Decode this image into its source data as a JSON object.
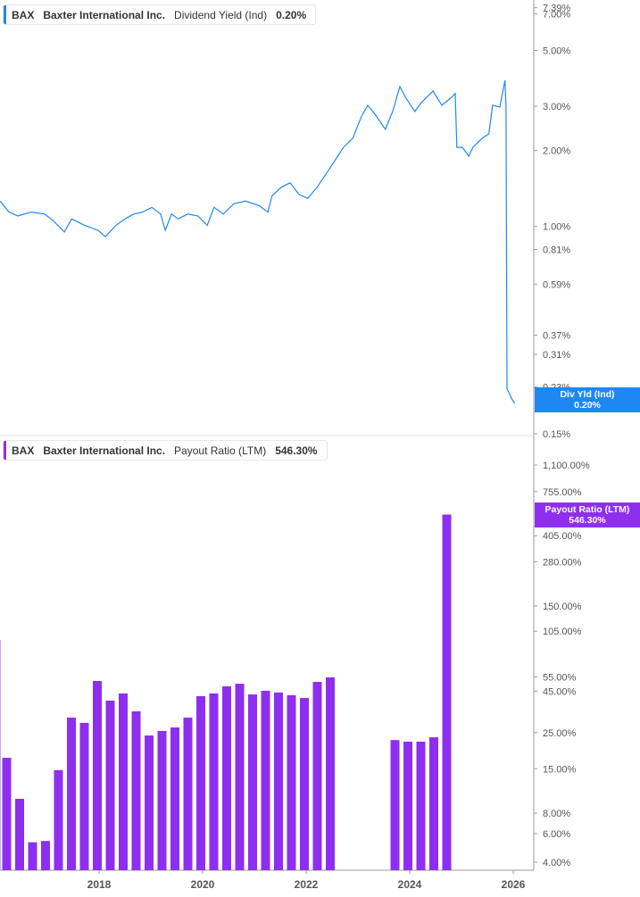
{
  "colors": {
    "yield": "#1f87f2",
    "payout": "#8e2ff0",
    "axis": "#999999"
  },
  "legend_top": {
    "ticker": "BAX",
    "company": "Baxter International Inc.",
    "metric": "Dividend Yield (Ind)",
    "value": "0.20%"
  },
  "legend_bottom": {
    "ticker": "BAX",
    "company": "Baxter International Inc.",
    "metric": "Payout Ratio (LTM)",
    "value": "546.30%"
  },
  "tag_top": {
    "label": "Div Yld (Ind)",
    "value": "0.20%"
  },
  "tag_bottom": {
    "label": "Payout Ratio (LTM)",
    "value": "546.30%"
  },
  "chart_data": [
    {
      "type": "line",
      "scale": "log",
      "series": [
        {
          "name": "Dividend Yield (Ind)",
          "unit": "%",
          "x": [
            2016.09,
            2016.26,
            2016.43,
            2016.69,
            2016.95,
            2017.12,
            2017.33,
            2017.47,
            2017.72,
            2017.98,
            2018.12,
            2018.33,
            2018.5,
            2018.67,
            2018.84,
            2019.02,
            2019.19,
            2019.28,
            2019.4,
            2019.53,
            2019.71,
            2019.91,
            2020.09,
            2020.22,
            2020.4,
            2020.6,
            2020.83,
            2021.09,
            2021.26,
            2021.34,
            2021.52,
            2021.69,
            2021.86,
            2022.03,
            2022.21,
            2022.38,
            2022.55,
            2022.72,
            2022.9,
            2023.07,
            2023.19,
            2023.33,
            2023.53,
            2023.67,
            2023.81,
            2023.93,
            2024.1,
            2024.22,
            2024.45,
            2024.62,
            2024.79,
            2024.88,
            2024.91,
            2025.02,
            2025.14,
            2025.22,
            2025.4,
            2025.53,
            2025.6,
            2025.74,
            2025.84,
            2025.86,
            2025.88,
            2025.98,
            2026.03
          ],
          "y": [
            1.26,
            1.14,
            1.1,
            1.14,
            1.12,
            1.05,
            0.95,
            1.07,
            1.01,
            0.965,
            0.91,
            1.01,
            1.07,
            1.12,
            1.14,
            1.19,
            1.12,
            0.965,
            1.12,
            1.07,
            1.12,
            1.1,
            1.01,
            1.19,
            1.12,
            1.23,
            1.26,
            1.21,
            1.14,
            1.32,
            1.43,
            1.49,
            1.34,
            1.29,
            1.43,
            1.61,
            1.82,
            2.06,
            2.24,
            2.74,
            3.03,
            2.79,
            2.43,
            2.86,
            3.59,
            3.23,
            2.86,
            3.1,
            3.45,
            3.03,
            3.23,
            3.37,
            2.06,
            2.06,
            1.9,
            2.06,
            2.24,
            2.33,
            3.03,
            2.98,
            3.8,
            2.98,
            0.227,
            0.205,
            0.198
          ]
        }
      ],
      "y_ticks": [
        "7.39%",
        "7.00%",
        "5.00%",
        "3.00%",
        "2.00%",
        "1.00%",
        "0.81%",
        "0.59%",
        "0.37%",
        "0.31%",
        "0.23%",
        "0.15%"
      ],
      "y_tick_values": [
        7.39,
        7.0,
        5.0,
        3.0,
        2.0,
        1.0,
        0.81,
        0.59,
        0.37,
        0.31,
        0.23,
        0.15
      ]
    },
    {
      "type": "bar",
      "scale": "log",
      "categories": [
        "2016Q1",
        "2016Q2",
        "2016Q3",
        "2016Q4",
        "2017Q1",
        "2017Q2",
        "2017Q3",
        "2017Q4",
        "2018Q1",
        "2018Q2",
        "2018Q3",
        "2018Q4",
        "2019Q1",
        "2019Q2",
        "2019Q3",
        "2019Q4",
        "2020Q1",
        "2020Q2",
        "2020Q3",
        "2020Q4",
        "2021Q1",
        "2021Q2",
        "2021Q3",
        "2021Q4",
        "2022Q1",
        "2022Q2",
        "2022Q3",
        "2022Q4",
        "2023Q1",
        "2023Q2",
        "2023Q3",
        "2023Q4",
        "2024Q1",
        "2024Q2",
        "2024Q3"
      ],
      "x": [
        2016.25,
        2016.5,
        2016.75,
        2017.0,
        2017.25,
        2017.5,
        2017.75,
        2018.0,
        2018.25,
        2018.5,
        2018.75,
        2019.0,
        2019.25,
        2019.5,
        2019.75,
        2020.0,
        2020.25,
        2020.5,
        2020.75,
        2021.0,
        2021.25,
        2021.5,
        2021.75,
        2022.0,
        2022.25,
        2022.5,
        2022.75,
        2023.0,
        2023.25,
        2023.5,
        2023.75,
        2024.0,
        2024.25,
        2024.5,
        2024.75
      ],
      "series": [
        {
          "name": "Payout Ratio (LTM)",
          "unit": "%",
          "values": [
            17.5,
            9.8,
            5.3,
            5.4,
            14.7,
            30.9,
            28.7,
            51.9,
            39.3,
            43.5,
            33.8,
            24.0,
            25.6,
            26.9,
            30.9,
            41.9,
            43.5,
            48.1,
            49.9,
            42.9,
            45.2,
            44.1,
            42.4,
            40.8,
            51.2,
            54.6,
            null,
            null,
            null,
            null,
            22.5,
            22.0,
            22.0,
            23.4,
            546.3
          ]
        }
      ],
      "y_ticks": [
        "1,100.00%",
        "755.00%",
        "405.00%",
        "280.00%",
        "150.00%",
        "105.00%",
        "55.00%",
        "45.00%",
        "25.00%",
        "15.00%",
        "8.00%",
        "6.00%",
        "4.00%"
      ],
      "y_tick_values": [
        1100,
        755,
        405,
        280,
        150,
        105,
        55,
        45,
        25,
        15,
        8,
        6,
        4
      ],
      "x_ticks": [
        "2018",
        "2020",
        "2022",
        "2024",
        "2026"
      ],
      "x_tick_values": [
        2018,
        2020,
        2022,
        2024,
        2026
      ]
    }
  ]
}
